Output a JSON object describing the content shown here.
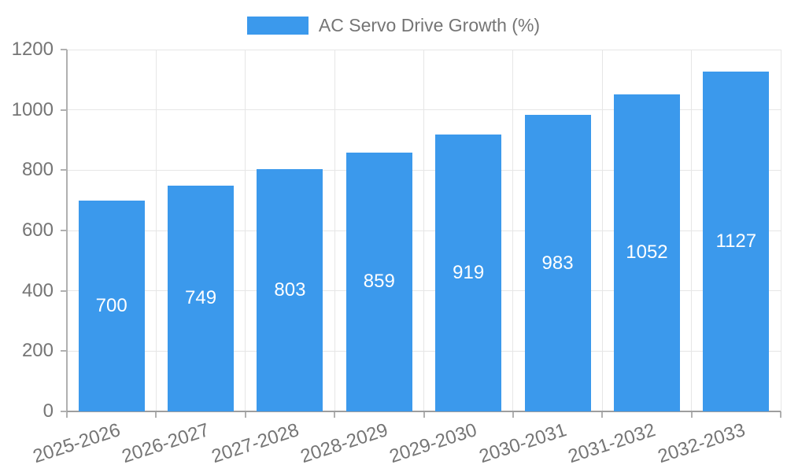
{
  "chart_data": {
    "type": "bar",
    "title": "AC Servo Drive Growth (%)",
    "legend_position": "top",
    "categories": [
      "2025-2026",
      "2026-2027",
      "2027-2028",
      "2028-2029",
      "2029-2030",
      "2030-2031",
      "2031-2032",
      "2032-2033"
    ],
    "values": [
      700,
      749,
      803,
      859,
      919,
      983,
      1052,
      1127
    ],
    "xlabel": "",
    "ylabel": "",
    "ylim": [
      0,
      1200
    ],
    "yticks": [
      0,
      200,
      400,
      600,
      800,
      1000,
      1200
    ],
    "grid": true,
    "value_labels": "inside-center",
    "colors": {
      "bar": "#3b99ec",
      "gridline": "#e6e6e6",
      "axis": "#b0b0b0",
      "axis_baseline": "#9e9e9e",
      "tick_text": "#757575",
      "legend_text": "#757575",
      "value_text": "#ffffff",
      "background": "#ffffff"
    }
  }
}
